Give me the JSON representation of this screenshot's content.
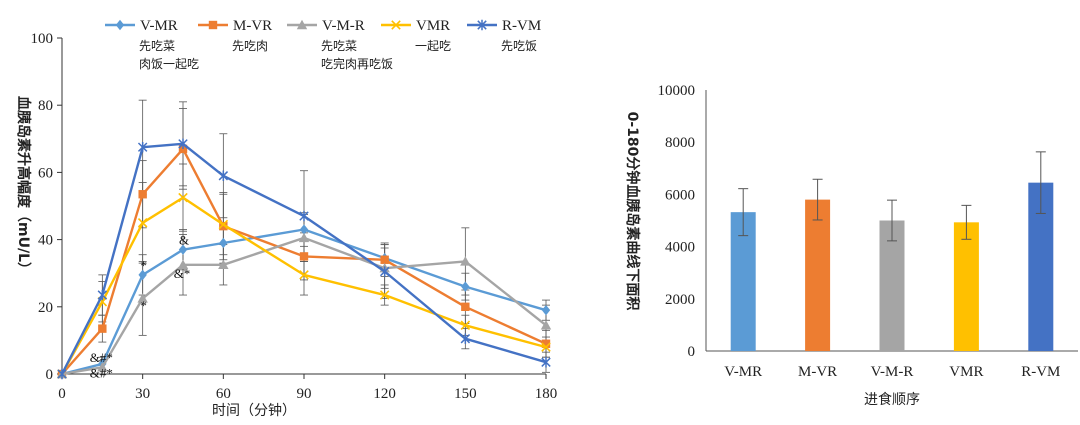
{
  "chart_data": [
    {
      "type": "line",
      "title": "",
      "xlabel": "时间（分钟）",
      "ylabel": "血胰岛素升高幅度（mU/L）",
      "x": [
        0,
        15,
        30,
        45,
        60,
        90,
        120,
        150,
        180
      ],
      "xlim": [
        0,
        180
      ],
      "ylim": [
        0,
        100
      ],
      "xticks": [
        0,
        30,
        60,
        90,
        120,
        150,
        180
      ],
      "yticks": [
        0,
        20,
        40,
        60,
        80,
        100
      ],
      "grid": false,
      "legend_position": "top",
      "series": [
        {
          "name": "V-MR",
          "desc": [
            "先吃菜",
            "肉饭一起吃"
          ],
          "color": "#5B9BD5",
          "marker": "diamond",
          "values": [
            0,
            3,
            29.5,
            37,
            39,
            43,
            34.5,
            26,
            19
          ],
          "err": [
            0,
            2,
            6,
            6,
            6,
            5,
            4,
            4,
            3
          ]
        },
        {
          "name": "M-VR",
          "desc": [
            "先吃肉"
          ],
          "color": "#ED7D31",
          "marker": "square",
          "values": [
            0,
            13.5,
            53.5,
            67,
            44,
            35,
            34,
            20,
            9
          ],
          "err": [
            0,
            4,
            10,
            12,
            10,
            7,
            5,
            5,
            4
          ]
        },
        {
          "name": "V-M-R",
          "desc": [
            "先吃菜",
            "吃完肉再吃饭"
          ],
          "color": "#A5A5A5",
          "marker": "triangle",
          "values": [
            0,
            2,
            22.5,
            32.5,
            32.5,
            40.5,
            31.5,
            33.5,
            14.5
          ],
          "err": [
            0,
            2,
            11,
            9,
            6,
            7,
            6,
            10,
            6
          ]
        },
        {
          "name": "VMR",
          "desc": [
            "一起吃"
          ],
          "color": "#FFC000",
          "marker": "x",
          "values": [
            0,
            21.5,
            45,
            52.5,
            44.5,
            29.5,
            23.5,
            14.5,
            8
          ],
          "err": [
            0,
            6,
            12,
            10,
            9,
            6,
            3,
            3,
            3
          ]
        },
        {
          "name": "R-VM",
          "desc": [
            "先吃饭"
          ],
          "color": "#4472C4",
          "marker": "star",
          "values": [
            0,
            23.5,
            67.5,
            68.5,
            59,
            47,
            30.5,
            10.5,
            3.5
          ],
          "err": [
            0,
            6,
            14,
            12.5,
            12.5,
            13.5,
            8,
            3,
            3
          ]
        }
      ],
      "annotations": [
        {
          "text": "&#*",
          "x": 15,
          "y": 3.5
        },
        {
          "text": "&#*",
          "x": 15,
          "y": -1
        },
        {
          "text": "*",
          "x": 30,
          "y": 31
        },
        {
          "text": "*",
          "x": 30,
          "y": 19
        },
        {
          "text": "&",
          "x": 45,
          "y": 38.5
        },
        {
          "text": "&*",
          "x": 45,
          "y": 28.5
        }
      ]
    },
    {
      "type": "bar",
      "title": "",
      "xlabel": "进食顺序",
      "ylabel": "0-180分钟血胰岛素曲线下面积",
      "categories": [
        "V-MR",
        "M-VR",
        "V-M-R",
        "VMR",
        "R-VM"
      ],
      "values": [
        5320,
        5800,
        5000,
        4930,
        6450
      ],
      "err": [
        900,
        780,
        780,
        650,
        1180
      ],
      "colors": [
        "#5B9BD5",
        "#ED7D31",
        "#A5A5A5",
        "#FFC000",
        "#4472C4"
      ],
      "ylim": [
        0,
        10000
      ],
      "yticks": [
        0,
        2000,
        4000,
        6000,
        8000,
        10000
      ],
      "grid": false
    }
  ]
}
